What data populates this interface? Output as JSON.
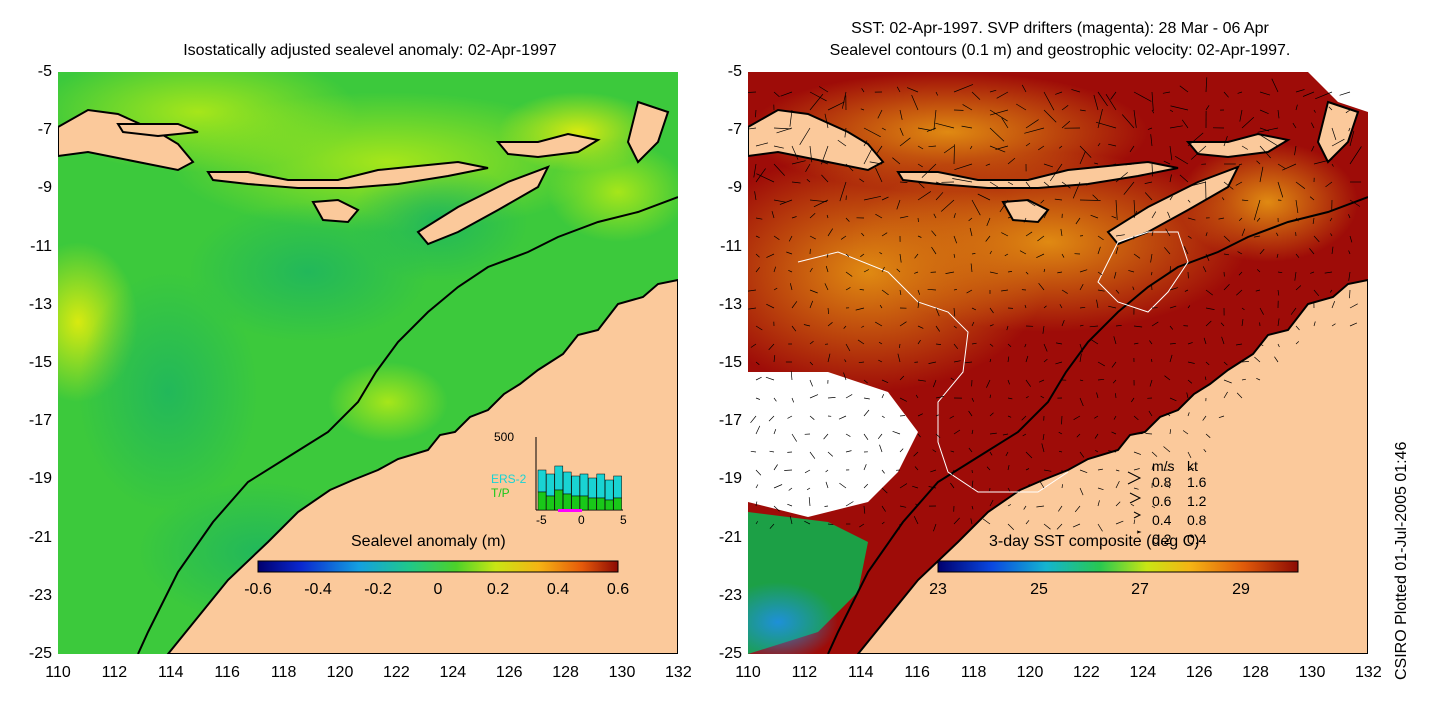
{
  "left": {
    "title": "Isostatically adjusted sealevel anomaly: 02-Apr-1997",
    "colorbar": {
      "label": "Sealevel anomaly (m)",
      "ticks": [
        "-0.6",
        "-0.4",
        "-0.2",
        "0",
        "0.2",
        "0.4",
        "0.6"
      ]
    },
    "inset": {
      "ymax": "500",
      "series": [
        "ERS-2",
        "T/P"
      ],
      "xticks": [
        "-5",
        "0",
        "5"
      ],
      "series_colors": {
        "ERS-2": "#19d3d3",
        "T/P": "#19c819"
      }
    }
  },
  "right": {
    "title_line1": "SST: 02-Apr-1997. SVP drifters (magenta): 28 Mar - 06 Apr",
    "title_line2": "Sealevel contours (0.1 m) and geostrophic velocity: 02-Apr-1997.",
    "colorbar": {
      "label": "3-day SST composite (deg C)",
      "ticks": [
        "23",
        "25",
        "27",
        "29"
      ]
    },
    "velocity_legend": {
      "header_ms": "m/s",
      "header_kt": "kt",
      "rows": [
        {
          "ms": "0.8",
          "kt": "1.6"
        },
        {
          "ms": "0.6",
          "kt": "1.2"
        },
        {
          "ms": "0.4",
          "kt": "0.8"
        },
        {
          "ms": "0.2",
          "kt": "0.4"
        }
      ]
    }
  },
  "axes": {
    "y_ticks": [
      "-5",
      "-7",
      "-9",
      "-11",
      "-13",
      "-15",
      "-17",
      "-19",
      "-21",
      "-23",
      "-25"
    ],
    "x_ticks": [
      "110",
      "112",
      "114",
      "116",
      "118",
      "120",
      "122",
      "124",
      "126",
      "128",
      "130",
      "132"
    ],
    "lon_range": [
      110,
      132
    ],
    "lat_range": [
      -25,
      -5
    ]
  },
  "side_text": "CSIRO Plotted 01-Jul-2005 01:46",
  "colors": {
    "land": "#fbc99b",
    "sea_left": "#3ccf3c",
    "sst_warm": "#9e0c08",
    "sst_orange": "#d9790e",
    "sst_cool": "#2aa9d9"
  }
}
